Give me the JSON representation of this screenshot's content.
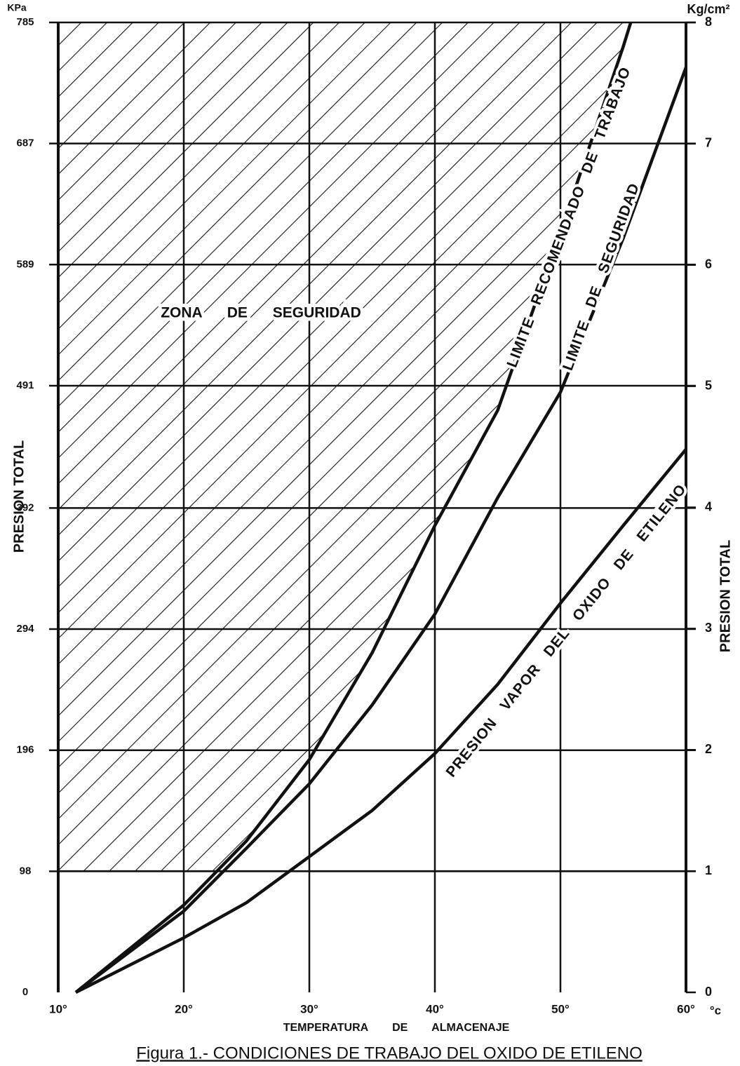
{
  "chart_data": {
    "type": "line",
    "title": "Figura 1.- CONDICIONES DE TRABAJO DEL OXIDO DE ETILENO",
    "x_label": "TEMPERATURA DE ALMACENAJE",
    "x_unit": "°c",
    "y_label": "PRESION TOTAL",
    "y_unit": "KPa",
    "y2_label": "PRESION TOTAL",
    "y2_unit": "Kg/cm²",
    "xlim": [
      10,
      60
    ],
    "xticks": [
      {
        "value": 10,
        "label": "10°"
      },
      {
        "value": 20,
        "label": "20°"
      },
      {
        "value": 30,
        "label": "30°"
      },
      {
        "value": 40,
        "label": "40°"
      },
      {
        "value": 50,
        "label": "50°"
      },
      {
        "value": 60,
        "label": "60°"
      }
    ],
    "ylim": [
      0,
      785
    ],
    "yticks": [
      0,
      98,
      196,
      294,
      392,
      491,
      589,
      687,
      785
    ],
    "y2lim": [
      0,
      8
    ],
    "y2ticks": [
      0,
      1,
      2,
      3,
      4,
      5,
      6,
      7,
      8
    ],
    "grid": true,
    "zone": {
      "label": "ZONA DE SEGURIDAD",
      "y2min": 1
    },
    "series": [
      {
        "name": "LIMITE RECOMENDADO DE TRABAJO",
        "color": "#111111",
        "axis": "y2",
        "x": [
          11.4,
          20,
          25,
          30,
          35,
          40,
          45,
          50,
          55,
          55.6
        ],
        "values": [
          0,
          0.72,
          1.25,
          1.92,
          2.8,
          3.85,
          4.8,
          6.27,
          7.8,
          8
        ]
      },
      {
        "name": "LIMITE DE SEGURIDAD",
        "color": "#111111",
        "axis": "y2",
        "x": [
          11.4,
          20,
          25,
          30,
          35,
          40,
          45,
          50,
          55,
          60
        ],
        "values": [
          0,
          0.67,
          1.19,
          1.72,
          2.37,
          3.12,
          4.08,
          4.95,
          6.22,
          7.63
        ]
      },
      {
        "name": "PRESION VAPOR DEL OXIDO DE ETILENO",
        "color": "#111111",
        "axis": "y2",
        "x": [
          11.4,
          20,
          25,
          30,
          35,
          40,
          45,
          50,
          55,
          60
        ],
        "values": [
          0,
          0.45,
          0.74,
          1.12,
          1.5,
          1.97,
          2.54,
          3.21,
          3.85,
          4.48
        ]
      }
    ]
  }
}
